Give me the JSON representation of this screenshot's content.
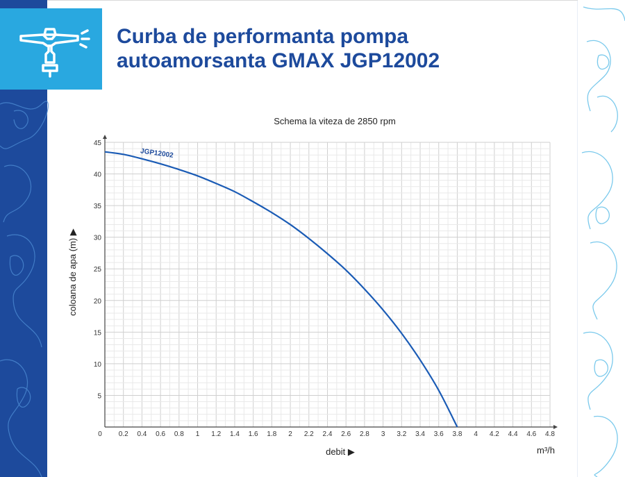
{
  "header": {
    "title_line1": "Curba de performanta pompa",
    "title_line2": "autoamorsanta GMAX JGP12002",
    "logo_icon": "sprinkler-pump-icon"
  },
  "colors": {
    "brand_dark": "#1d4a9c",
    "brand_light": "#29a8e0",
    "curve": "#1a5bb5",
    "pattern_right": "#6cc4ea"
  },
  "chart_data": {
    "type": "line",
    "title": "Schema la viteza de 2850 rpm",
    "xlabel": "debit ▶",
    "x_unit": "m³/h",
    "ylabel": "coloana de apa  (m)  ▶",
    "xlim": [
      0,
      4.8
    ],
    "ylim": [
      0,
      45
    ],
    "x_ticks": [
      "0",
      "0.2",
      "0.4",
      "0.6",
      "0.8",
      "1",
      "1.2",
      "1.4",
      "1.6",
      "1.8",
      "2",
      "2.2",
      "2.4",
      "2.6",
      "2.8",
      "3",
      "3.2",
      "3.4",
      "3.6",
      "3.8",
      "4",
      "4.2",
      "4.4",
      "4.6",
      "4.8"
    ],
    "y_ticks": [
      "5",
      "10",
      "15",
      "20",
      "25",
      "30",
      "35",
      "40",
      "45"
    ],
    "grid": true,
    "series": [
      {
        "name": "JGP12002",
        "x": [
          0,
          0.2,
          0.4,
          0.6,
          0.8,
          1.0,
          1.2,
          1.4,
          1.6,
          1.8,
          2.0,
          2.2,
          2.4,
          2.6,
          2.8,
          3.0,
          3.2,
          3.4,
          3.6,
          3.8
        ],
        "y": [
          43.5,
          43.1,
          42.4,
          41.6,
          40.7,
          39.7,
          38.5,
          37.2,
          35.6,
          33.9,
          32.0,
          29.8,
          27.4,
          24.8,
          21.8,
          18.5,
          14.8,
          10.6,
          5.8,
          0
        ]
      }
    ]
  }
}
